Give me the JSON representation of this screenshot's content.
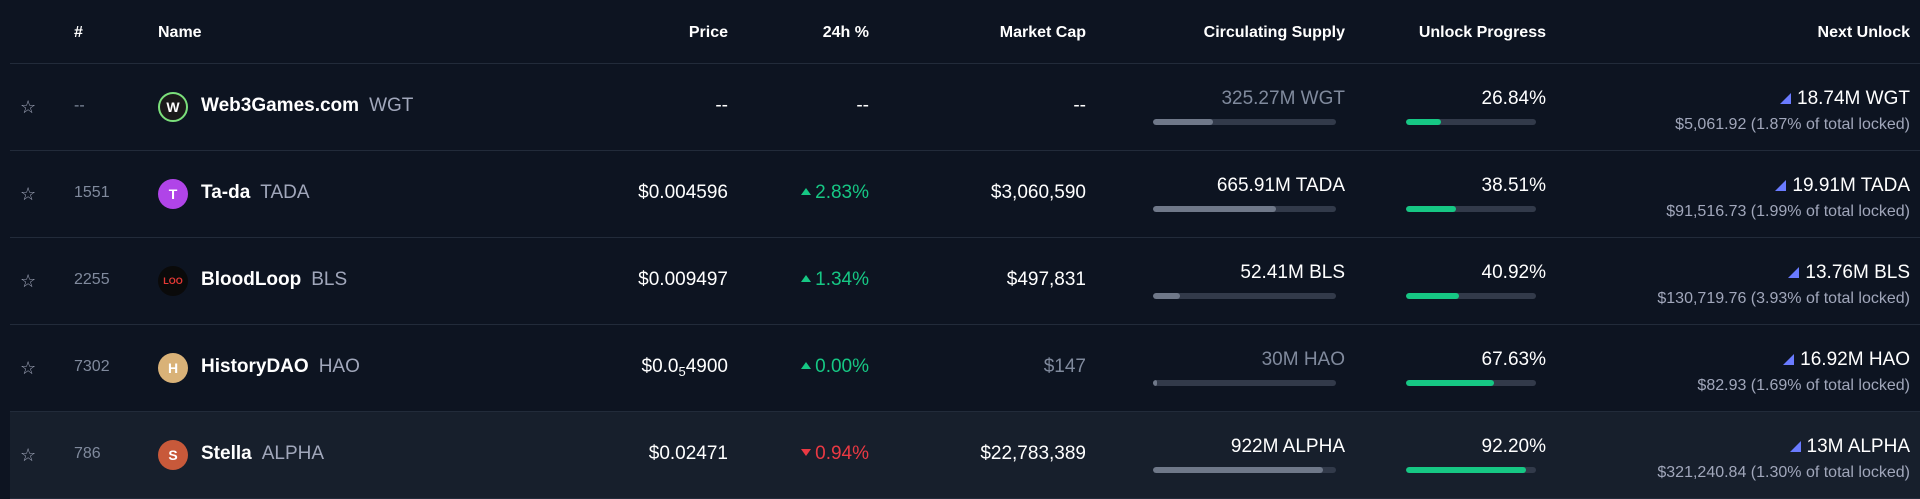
{
  "header": {
    "rank": "#",
    "name": "Name",
    "price": "Price",
    "change": "24h %",
    "market_cap": "Market Cap",
    "circulating_supply": "Circulating Supply",
    "unlock_progress": "Unlock Progress",
    "next_unlock": "Next Unlock"
  },
  "colors": {
    "background": "#0d1421",
    "positive": "#16c784",
    "negative": "#ea3943",
    "unlock_flag": "#6a7bff",
    "progress": "#16c784"
  },
  "rows": [
    {
      "rank": "--",
      "name": "Web3Games.com",
      "symbol": "WGT",
      "logo_icon": "web3games-logo-icon",
      "logo_color": "#1a1a1a",
      "logo_glyph": "W",
      "price_main": "--",
      "price_sub": "",
      "price_tail": "",
      "change": "--",
      "direction": "none",
      "market_cap": "--",
      "supply": "325.27M WGT",
      "supply_dim": true,
      "supply_fraction": 0.33,
      "unlock": "26.84%",
      "unlock_fraction": 0.2684,
      "next_amount": "18.74M WGT",
      "next_detail": "$5,061.92 (1.87% of total locked)"
    },
    {
      "rank": "1551",
      "name": "Ta-da",
      "symbol": "TADA",
      "logo_icon": "tada-logo-icon",
      "logo_color": "#b044e8",
      "logo_glyph": "T",
      "price_main": "$0.004596",
      "price_sub": "",
      "price_tail": "",
      "change": "2.83%",
      "direction": "up",
      "market_cap": "$3,060,590",
      "supply": "665.91M TADA",
      "supply_dim": false,
      "supply_fraction": 0.67,
      "unlock": "38.51%",
      "unlock_fraction": 0.3851,
      "next_amount": "19.91M TADA",
      "next_detail": "$91,516.73 (1.99% of total locked)"
    },
    {
      "rank": "2255",
      "name": "BloodLoop",
      "symbol": "BLS",
      "logo_icon": "bloodloop-logo-icon",
      "logo_color": "#0a0a0a",
      "logo_glyph": "LOO",
      "price_main": "$0.009497",
      "price_sub": "",
      "price_tail": "",
      "change": "1.34%",
      "direction": "up",
      "market_cap": "$497,831",
      "supply": "52.41M BLS",
      "supply_dim": false,
      "supply_fraction": 0.15,
      "unlock": "40.92%",
      "unlock_fraction": 0.4092,
      "next_amount": "13.76M BLS",
      "next_detail": "$130,719.76 (3.93% of total locked)"
    },
    {
      "rank": "7302",
      "name": "HistoryDAO",
      "symbol": "HAO",
      "logo_icon": "historydao-logo-icon",
      "logo_color": "#d9b278",
      "logo_glyph": "H",
      "price_main": "$0.0",
      "price_sub": "5",
      "price_tail": "4900",
      "change": "0.00%",
      "direction": "up",
      "market_cap": "$147",
      "market_cap_dim": true,
      "supply": "30M HAO",
      "supply_dim": true,
      "supply_fraction": 0.02,
      "unlock": "67.63%",
      "unlock_fraction": 0.6763,
      "next_amount": "16.92M HAO",
      "next_detail": "$82.93 (1.69% of total locked)"
    },
    {
      "rank": "786",
      "name": "Stella",
      "symbol": "ALPHA",
      "logo_icon": "stella-logo-icon",
      "logo_color": "#c8593a",
      "logo_glyph": "S",
      "price_main": "$0.02471",
      "price_sub": "",
      "price_tail": "",
      "change": "0.94%",
      "direction": "down",
      "market_cap": "$22,783,389",
      "supply": "922M ALPHA",
      "supply_dim": false,
      "supply_fraction": 0.93,
      "unlock": "92.20%",
      "unlock_fraction": 0.922,
      "next_amount": "13M ALPHA",
      "next_detail": "$321,240.84 (1.30% of total locked)"
    }
  ]
}
